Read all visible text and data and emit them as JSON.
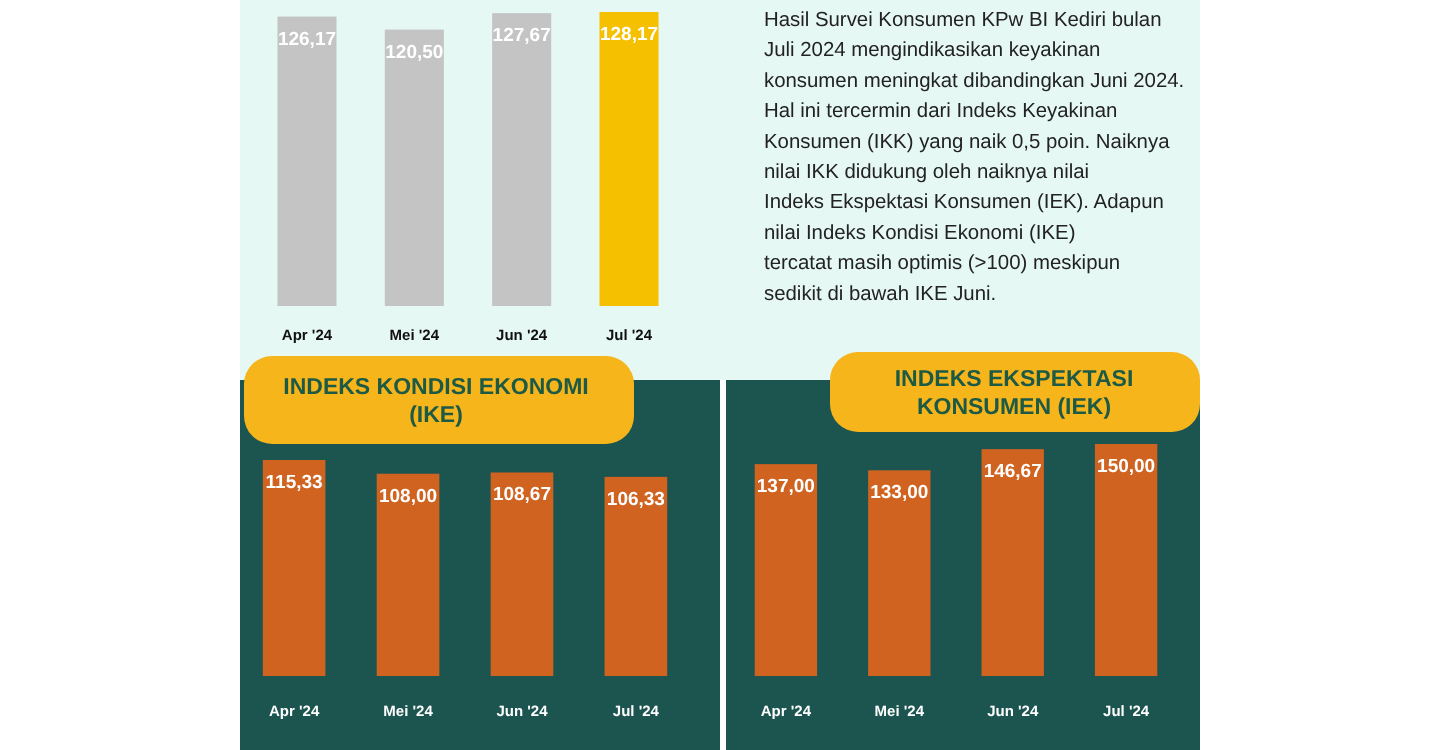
{
  "chart_data": [
    {
      "type": "bar",
      "categories": [
        "Apr '24",
        "Mei '24",
        "Jun '24",
        "Jul '24"
      ],
      "values": [
        126.17,
        120.5,
        127.67,
        128.17
      ],
      "value_labels": [
        "126,17",
        "120,50",
        "127,67",
        "128,17"
      ],
      "colors": [
        "#c4c4c4",
        "#c4c4c4",
        "#c4c4c4",
        "#f5c000"
      ]
    },
    {
      "type": "other",
      "annotations": [
        "Hasil Survei Konsumen KPw BI Kediri bulan Juli 2024 mengindikasikan keyakinan konsumen meningkat dibandingkan Juni 2024. Hal ini tercermin dari Indeks Keyakinan Konsumen (IKK) yang naik 0,5 poin. Naiknya nilai IKK didukung oleh naiknya nilai Indeks Ekspektasi Konsumen (IEK). Adapun nilai Indeks Kondisi Ekonomi (IKE) tercatat masih optimis (>100) meskipun sedikit di bawah IKE Juni."
      ]
    },
    {
      "type": "bar",
      "title": "INDEKS KONDISI EKONOMI (IKE)",
      "categories": [
        "Apr '24",
        "Mei '24",
        "Jun '24",
        "Jul '24"
      ],
      "values": [
        115.33,
        108.0,
        108.67,
        106.33
      ],
      "value_labels": [
        "115,33",
        "108,00",
        "108,67",
        "106,33"
      ],
      "color": "#cf631f"
    },
    {
      "type": "bar",
      "title": "INDEKS EKSPEKTASI KONSUMEN (IEK)",
      "categories": [
        "Apr '24",
        "Mei '24",
        "Jun '24",
        "Jul '24"
      ],
      "values": [
        137.0,
        133.0,
        146.67,
        150.0
      ],
      "value_labels": [
        "137,00",
        "133,00",
        "146,67",
        "150,00"
      ],
      "color": "#cf631f"
    }
  ]
}
